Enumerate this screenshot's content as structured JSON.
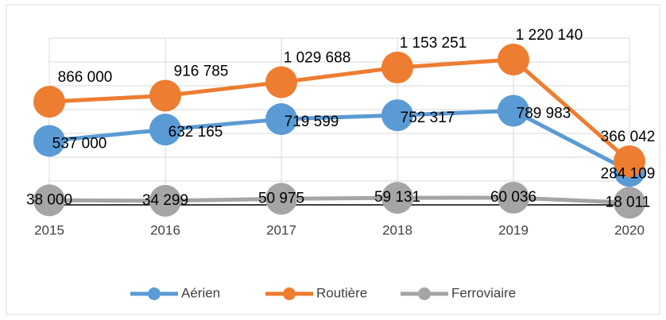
{
  "chart_data": {
    "type": "line",
    "categories": [
      "2015",
      "2016",
      "2017",
      "2018",
      "2019",
      "2020"
    ],
    "series": [
      {
        "name": "Aérien",
        "color": "#5b9bd5",
        "values": [
          537000,
          632165,
          719599,
          752317,
          789983,
          284109
        ],
        "value_labels": [
          "537 000",
          "632 165",
          "719 599",
          "752 317",
          "789 983",
          "284 109"
        ]
      },
      {
        "name": "Routière",
        "color": "#ed7d31",
        "values": [
          866000,
          916785,
          1029688,
          1153251,
          1220140,
          366042
        ],
        "value_labels": [
          "866 000",
          "916 785",
          "1 029 688",
          "1 153 251",
          "1 220 140",
          "366 042"
        ]
      },
      {
        "name": "Ferroviaire",
        "color": "#a5a5a5",
        "values": [
          38000,
          34299,
          50975,
          59131,
          60036,
          18011
        ],
        "value_labels": [
          "38 000",
          "34 299",
          "50 975",
          "59 131",
          "60 036",
          "18 011"
        ]
      }
    ],
    "ylim": [
      0,
      1400000
    ],
    "yticks": [
      0,
      200000,
      400000,
      600000,
      800000,
      1000000,
      1200000,
      1400000
    ],
    "grid": true,
    "legend": "bottom"
  }
}
